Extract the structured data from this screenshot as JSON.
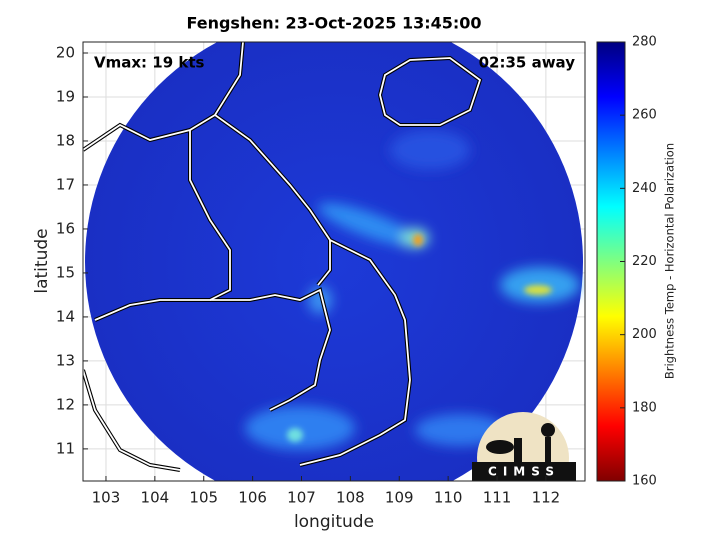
{
  "chart_data": {
    "type": "image",
    "title": "Fengshen: 23-Oct-2025 13:45:00",
    "xlabel": "longitude",
    "ylabel": "latitude",
    "xlim": [
      102.53,
      112.8
    ],
    "ylim": [
      10.27,
      20.25
    ],
    "xticks": [
      103,
      104,
      105,
      106,
      107,
      108,
      109,
      110,
      111,
      112
    ],
    "yticks": [
      11,
      12,
      13,
      14,
      15,
      16,
      17,
      18,
      19,
      20
    ],
    "grid": true,
    "annotations": [
      "Vmax: 19 kts",
      "02:35 away"
    ],
    "colorbar": {
      "label": "Brightness Temp - Horizontal Polarization",
      "lim": [
        160,
        280
      ],
      "ticks": [
        160,
        180,
        200,
        220,
        240,
        260,
        280
      ],
      "colormap": "jet"
    }
  },
  "logo": {
    "text": "CIMSS"
  }
}
